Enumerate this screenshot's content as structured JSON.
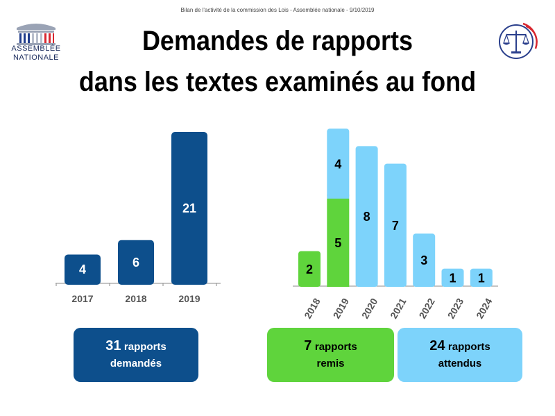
{
  "header": {
    "caption": "Bilan de l'activité de la commission des Lois - Assemblée nationale - 9/10/2019",
    "logo_line1": "ASSEMBLÉE",
    "logo_line2": "NATIONALE",
    "title_line1": "Demandes de rapports",
    "title_line2": "dans les textes examinés au fond"
  },
  "colors": {
    "dark_blue": "#0d4f8c",
    "green": "#5fd43c",
    "light_blue": "#7dd3fb"
  },
  "chart_data": [
    {
      "type": "bar",
      "categories": [
        "2017",
        "2018",
        "2019"
      ],
      "values": [
        4,
        6,
        21
      ],
      "ylim": [
        0,
        21
      ],
      "grid": false
    },
    {
      "type": "bar",
      "stacked": true,
      "categories": [
        "2018",
        "2019",
        "2020",
        "2021",
        "2022",
        "2023",
        "2024"
      ],
      "series": [
        {
          "name": "remis",
          "color": "#5fd43c",
          "values": [
            2,
            5,
            0,
            0,
            0,
            0,
            0
          ]
        },
        {
          "name": "attendus",
          "color": "#7dd3fb",
          "values": [
            0,
            4,
            8,
            7,
            3,
            1,
            1
          ]
        }
      ],
      "ylim": [
        0,
        9
      ],
      "grid": false
    }
  ],
  "summaries": {
    "demandes": {
      "number": "31",
      "word": "rapports",
      "label": "demandés"
    },
    "remis": {
      "number": "7",
      "word": "rapports",
      "label": "remis"
    },
    "attendus": {
      "number": "24",
      "word": "rapports",
      "label": "attendus"
    }
  }
}
